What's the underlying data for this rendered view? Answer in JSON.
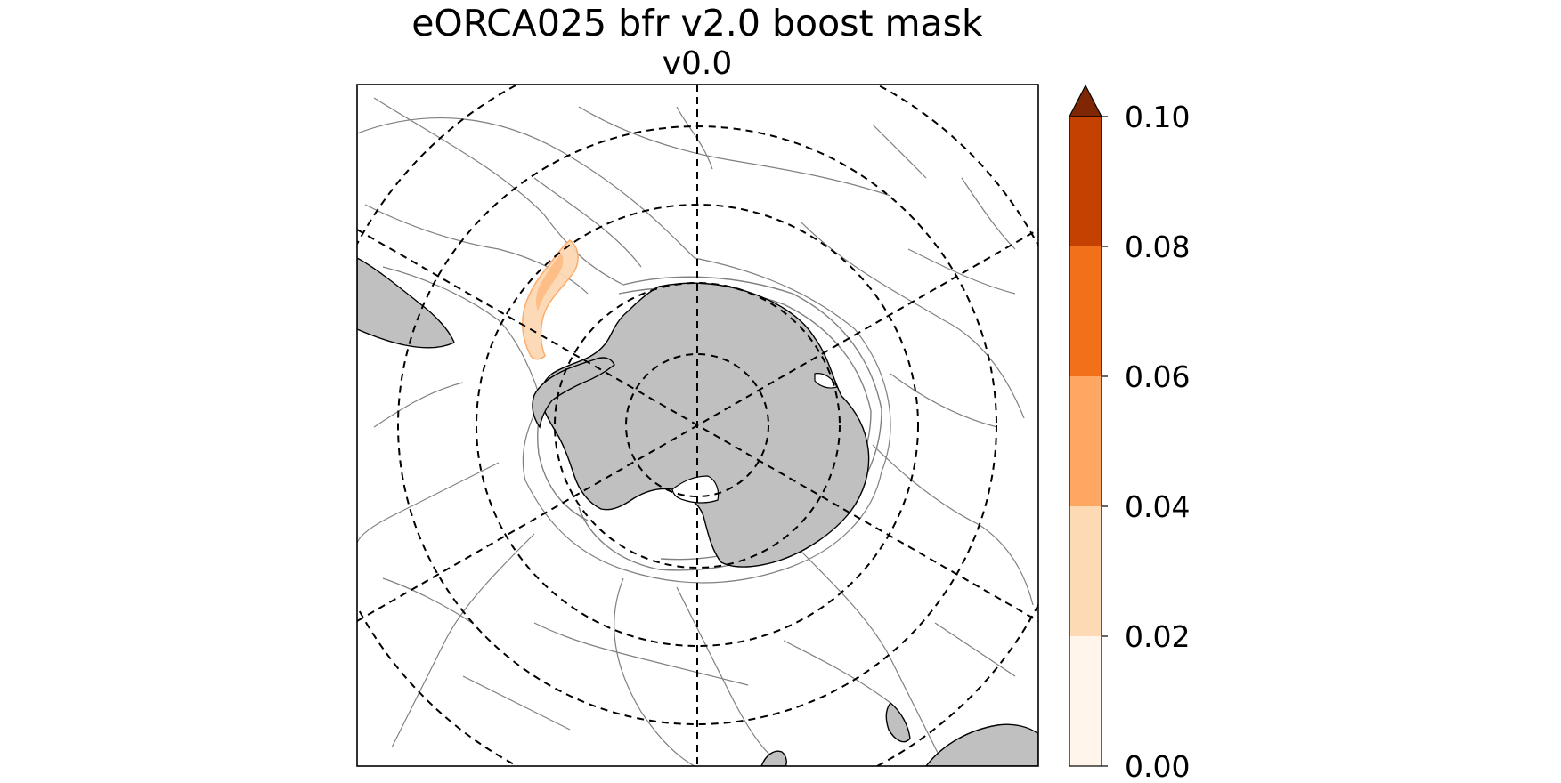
{
  "figure": {
    "title_line1": "eORCA025 bfr v2.0 boost mask",
    "title_line2": "v0.0"
  },
  "map": {
    "projection": "south-polar-stereographic",
    "gridlines": "dashed",
    "land_color": "#c0c0c0",
    "contour_color": "#808080",
    "coast_color": "#000000",
    "boost_region": "Drake Passage / Antarctic Peninsula shelf"
  },
  "colorbar": {
    "extend": "max",
    "ticks": [
      "0.10",
      "0.08",
      "0.06",
      "0.04",
      "0.02",
      "0.00"
    ],
    "levels": [
      0.0,
      0.02,
      0.04,
      0.06,
      0.08,
      0.1
    ],
    "colors": [
      "#fff5eb",
      "#fdd9b4",
      "#fda762",
      "#f3701b",
      "#c54102",
      "#7f2704"
    ]
  }
}
